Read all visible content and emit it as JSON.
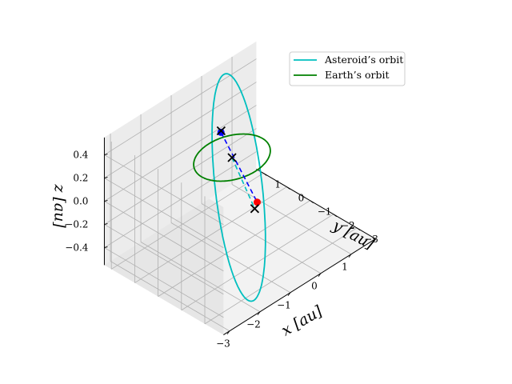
{
  "chart_data": {
    "type": "line",
    "projection": "3d",
    "title": "",
    "xlabel": "$x$ [au]",
    "ylabel": "$y$ [au]",
    "zlabel": "$z$ [au]",
    "xlabel_text": "x [au]",
    "ylabel_text": "y [au]",
    "zlabel_text": "z [au]",
    "xlim": [
      -3.2,
      1.8
    ],
    "ylim": [
      -3.8,
      1.3
    ],
    "zlim": [
      -0.55,
      0.55
    ],
    "xticks": [
      -3,
      -2,
      -1,
      0,
      1
    ],
    "yticks": [
      -3,
      -2,
      -1,
      0,
      1
    ],
    "zticks": [
      -0.4,
      -0.2,
      0.0,
      0.2,
      0.4
    ],
    "xtick_labels": [
      "−3",
      "−2",
      "−1",
      "0",
      "1"
    ],
    "ytick_labels": [
      "−3",
      "−2",
      "−1",
      "0",
      "1"
    ],
    "ztick_labels": [
      "−0.4",
      "−0.2",
      "0.0",
      "0.2",
      "0.4"
    ],
    "grid": true,
    "legend_position": "top-right",
    "series": [
      {
        "name": "Asteroid’s orbit",
        "color": "#00bfbf",
        "kind": "ellipse",
        "center": [
          -0.7,
          -1.2,
          0.0
        ],
        "axis_u": [
          1.25,
          2.15,
          0.52
        ],
        "axis_v": [
          0.55,
          -0.3,
          -0.06
        ],
        "samples": 240
      },
      {
        "name": "Earth’s orbit",
        "color": "#008000",
        "kind": "circle",
        "center": [
          0,
          0,
          0
        ],
        "radius": 1.0,
        "samples": 200
      }
    ],
    "points": [
      {
        "name": "sun",
        "marker": "x",
        "color": "#000000",
        "xyz": [
          0.0,
          0.0,
          0.0
        ]
      },
      {
        "name": "earth-position",
        "marker": "dot",
        "color": "#0000ff",
        "xyz": [
          -0.4,
          -0.05,
          0.29
        ]
      },
      {
        "name": "earth-marker",
        "marker": "x",
        "color": "#000000",
        "xyz": [
          -0.42,
          -0.08,
          0.31
        ]
      },
      {
        "name": "asteroid-position",
        "marker": "dot",
        "color": "#ff0000",
        "xyz": [
          -0.9,
          -2.25,
          0.03
        ]
      },
      {
        "name": "asteroid-marker",
        "marker": "x",
        "color": "#000000",
        "xyz": [
          -1.02,
          -2.3,
          0.0
        ]
      }
    ],
    "segments": [
      {
        "name": "earth-asteroid-line",
        "color": "#0000ff",
        "style": "dashed",
        "from": [
          -0.4,
          -0.05,
          0.29
        ],
        "to": [
          -0.9,
          -2.25,
          0.03
        ]
      },
      {
        "name": "sun-asteroid-line",
        "color": "#00bfbf",
        "style": "dashed",
        "from": [
          0.0,
          0.0,
          0.0
        ],
        "to": [
          -1.02,
          -2.3,
          0.0
        ]
      }
    ]
  }
}
